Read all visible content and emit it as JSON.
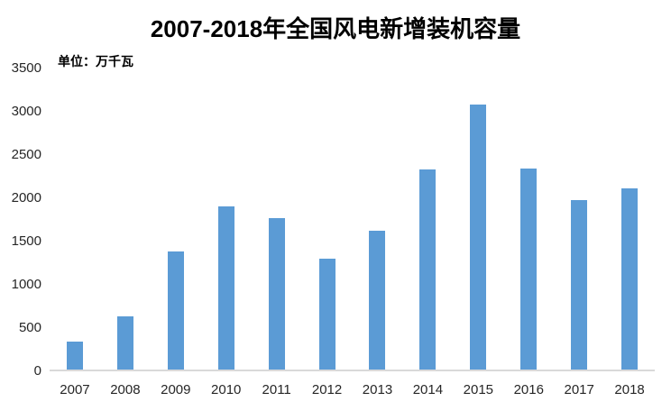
{
  "chart_data": {
    "type": "bar",
    "title": "2007-2018年全国风电新增装机容量",
    "unit_label": "单位：万千瓦",
    "categories": [
      "2007",
      "2008",
      "2009",
      "2010",
      "2011",
      "2012",
      "2013",
      "2014",
      "2015",
      "2016",
      "2017",
      "2018"
    ],
    "values": [
      330,
      625,
      1380,
      1893,
      1763,
      1296,
      1610,
      2320,
      3075,
      2337,
      1966,
      2100
    ],
    "xlabel": "",
    "ylabel": "",
    "ylim": [
      0,
      3500
    ],
    "yticks": [
      0,
      500,
      1000,
      1500,
      2000,
      2500,
      3000,
      3500
    ],
    "grid": false,
    "legend_position": "none",
    "bar_color": "#5B9BD5",
    "axis_line_color": "#D9D9D9",
    "tick_label_color": "#262626",
    "title_color": "#000000",
    "background_color": "#FFFFFF"
  }
}
